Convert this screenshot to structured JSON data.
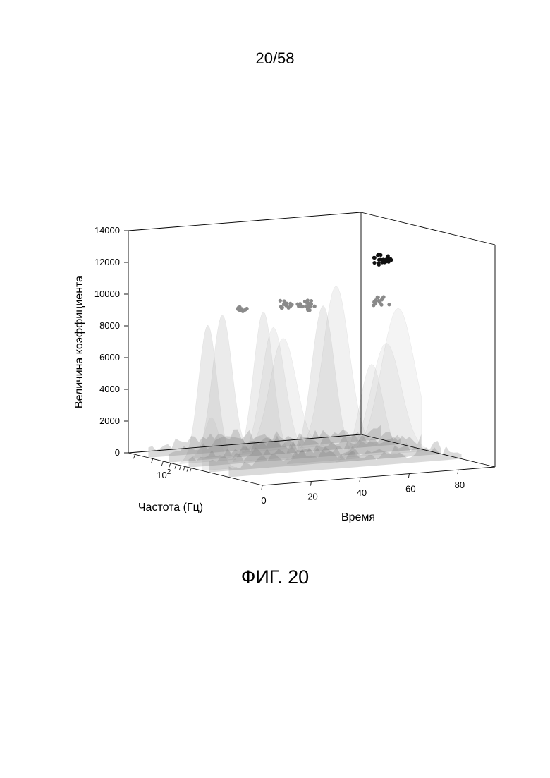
{
  "page": {
    "page_number": "20/58",
    "figure_caption": "ФИГ. 20"
  },
  "chart_data": {
    "type": "surface-3d",
    "zlabel": "Величина коэффициента",
    "xlabel": "Время",
    "ylabel": "Частота (Гц)",
    "z_ticks": [
      "0",
      "2000",
      "4000",
      "6000",
      "8000",
      "10000",
      "12000",
      "14000"
    ],
    "zlim": [
      0,
      14000
    ],
    "x_ticks": [
      "0",
      "20",
      "40",
      "60",
      "80"
    ],
    "xlim": [
      0,
      95
    ],
    "y_ticks": [
      {
        "base": "10",
        "exp": "2"
      }
    ],
    "y_scale": "log",
    "grid": false,
    "colors": {
      "surface": "#bdbdbd",
      "surface_dark": "#7a7a7a",
      "peak_markers": "#8a8a8a",
      "max_markers": "#111111",
      "axes": "#000000"
    }
  }
}
